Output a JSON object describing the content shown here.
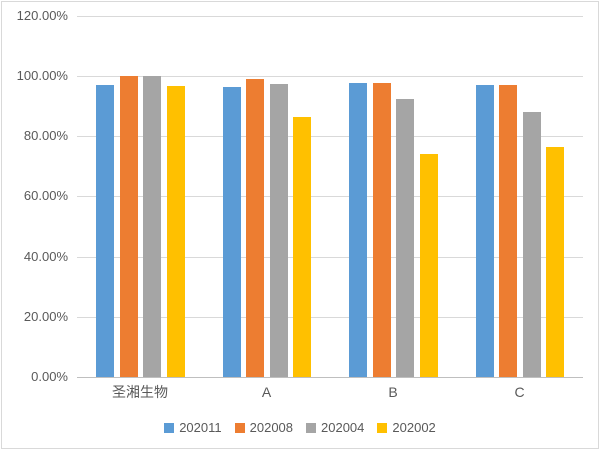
{
  "chart_data": {
    "type": "bar",
    "title": "",
    "categories": [
      "圣湘生物",
      "A",
      "B",
      "C"
    ],
    "series": [
      {
        "name": "202011",
        "color": "#5B9BD5",
        "values": [
          97.1,
          96.3,
          97.6,
          96.9
        ]
      },
      {
        "name": "202008",
        "color": "#ED7D31",
        "values": [
          100.0,
          98.9,
          97.8,
          97.0
        ]
      },
      {
        "name": "202004",
        "color": "#A5A5A5",
        "values": [
          100.0,
          97.3,
          92.3,
          88.0
        ]
      },
      {
        "name": "202002",
        "color": "#FFC000",
        "values": [
          96.8,
          86.5,
          74.0,
          76.5
        ]
      }
    ],
    "xlabel": "",
    "ylabel": "",
    "ylim": [
      0,
      120
    ],
    "ytick_step": 20,
    "ytick_labels": [
      "0.00%",
      "20.00%",
      "40.00%",
      "60.00%",
      "80.00%",
      "100.00%",
      "120.00%"
    ],
    "grid": true,
    "legend_position": "bottom"
  },
  "colors": {
    "background": "#FFFFFF",
    "border": "#D9D9D9",
    "gridline": "#D9D9D9",
    "axis_line": "#BFBFBF",
    "text": "#595959"
  }
}
